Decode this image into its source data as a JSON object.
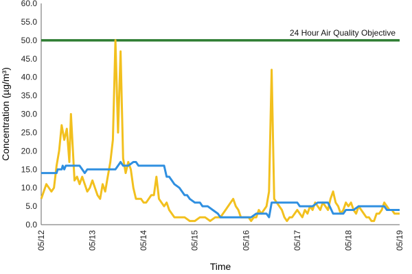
{
  "chart_data": {
    "type": "line",
    "xlabel": "Time",
    "ylabel": "Concentration (µg/m³)",
    "ylim": [
      0,
      60
    ],
    "y_ticks": [
      "0.0",
      "5.0",
      "10.0",
      "15.0",
      "20.0",
      "25.0",
      "30.0",
      "35.0",
      "40.0",
      "45.0",
      "50.0",
      "55.0",
      "60.0"
    ],
    "x_ticks": [
      "05/12",
      "05/13",
      "05/14",
      "05/15",
      "05/16",
      "05/17",
      "05/18",
      "05/19"
    ],
    "x_range_days": [
      0,
      7
    ],
    "grid": "none",
    "legend": "none",
    "objective": {
      "label": "24 Hour Air Quality Objective",
      "value": 50,
      "color": "#2e7d32"
    },
    "series": [
      {
        "color": "#f2c01e",
        "points": [
          [
            0.0,
            7
          ],
          [
            0.05,
            9
          ],
          [
            0.1,
            11
          ],
          [
            0.15,
            10
          ],
          [
            0.2,
            9
          ],
          [
            0.25,
            10
          ],
          [
            0.3,
            16
          ],
          [
            0.35,
            20
          ],
          [
            0.4,
            27
          ],
          [
            0.45,
            23
          ],
          [
            0.5,
            26
          ],
          [
            0.55,
            17
          ],
          [
            0.58,
            30
          ],
          [
            0.62,
            20
          ],
          [
            0.65,
            12
          ],
          [
            0.7,
            13
          ],
          [
            0.75,
            11
          ],
          [
            0.8,
            13
          ],
          [
            0.85,
            11
          ],
          [
            0.9,
            9
          ],
          [
            0.95,
            10
          ],
          [
            1.0,
            12
          ],
          [
            1.05,
            10
          ],
          [
            1.1,
            8
          ],
          [
            1.15,
            7
          ],
          [
            1.2,
            11
          ],
          [
            1.25,
            9
          ],
          [
            1.3,
            13
          ],
          [
            1.35,
            17
          ],
          [
            1.4,
            23
          ],
          [
            1.45,
            50
          ],
          [
            1.5,
            25
          ],
          [
            1.55,
            47
          ],
          [
            1.6,
            18
          ],
          [
            1.65,
            14
          ],
          [
            1.7,
            17
          ],
          [
            1.75,
            15
          ],
          [
            1.8,
            10
          ],
          [
            1.85,
            7
          ],
          [
            1.9,
            7
          ],
          [
            1.95,
            7
          ],
          [
            2.0,
            6
          ],
          [
            2.05,
            6
          ],
          [
            2.1,
            7
          ],
          [
            2.15,
            8
          ],
          [
            2.2,
            8
          ],
          [
            2.25,
            13
          ],
          [
            2.3,
            7
          ],
          [
            2.35,
            6
          ],
          [
            2.4,
            5
          ],
          [
            2.45,
            6
          ],
          [
            2.5,
            4
          ],
          [
            2.55,
            3
          ],
          [
            2.6,
            2
          ],
          [
            2.7,
            2
          ],
          [
            2.8,
            2
          ],
          [
            2.9,
            1
          ],
          [
            3.0,
            1
          ],
          [
            3.1,
            2
          ],
          [
            3.2,
            2
          ],
          [
            3.3,
            1
          ],
          [
            3.4,
            2
          ],
          [
            3.5,
            2
          ],
          [
            3.6,
            4
          ],
          [
            3.7,
            6
          ],
          [
            3.75,
            7
          ],
          [
            3.8,
            5
          ],
          [
            3.85,
            4
          ],
          [
            3.9,
            2
          ],
          [
            3.95,
            2
          ],
          [
            4.0,
            2
          ],
          [
            4.05,
            2
          ],
          [
            4.1,
            1
          ],
          [
            4.15,
            2
          ],
          [
            4.2,
            2
          ],
          [
            4.25,
            4
          ],
          [
            4.3,
            3
          ],
          [
            4.35,
            4
          ],
          [
            4.4,
            5
          ],
          [
            4.45,
            9
          ],
          [
            4.5,
            42
          ],
          [
            4.55,
            7
          ],
          [
            4.6,
            6
          ],
          [
            4.65,
            5
          ],
          [
            4.7,
            4
          ],
          [
            4.75,
            2
          ],
          [
            4.8,
            1
          ],
          [
            4.85,
            2
          ],
          [
            4.9,
            2
          ],
          [
            4.95,
            3
          ],
          [
            5.0,
            4
          ],
          [
            5.05,
            3
          ],
          [
            5.1,
            2
          ],
          [
            5.15,
            4
          ],
          [
            5.2,
            3
          ],
          [
            5.25,
            5
          ],
          [
            5.3,
            4
          ],
          [
            5.35,
            6
          ],
          [
            5.4,
            5
          ],
          [
            5.45,
            4
          ],
          [
            5.5,
            6
          ],
          [
            5.55,
            5
          ],
          [
            5.6,
            4
          ],
          [
            5.65,
            7
          ],
          [
            5.7,
            9
          ],
          [
            5.75,
            6
          ],
          [
            5.8,
            5
          ],
          [
            5.85,
            3
          ],
          [
            5.9,
            4
          ],
          [
            5.95,
            6
          ],
          [
            6.0,
            5
          ],
          [
            6.05,
            6
          ],
          [
            6.1,
            4
          ],
          [
            6.15,
            3
          ],
          [
            6.2,
            5
          ],
          [
            6.25,
            4
          ],
          [
            6.3,
            3
          ],
          [
            6.35,
            2
          ],
          [
            6.4,
            2
          ],
          [
            6.45,
            1
          ],
          [
            6.5,
            1
          ],
          [
            6.55,
            3
          ],
          [
            6.6,
            3
          ],
          [
            6.65,
            4
          ],
          [
            6.7,
            6
          ],
          [
            6.75,
            5
          ],
          [
            6.8,
            4
          ],
          [
            6.85,
            4
          ],
          [
            6.9,
            3
          ],
          [
            7.0,
            3
          ]
        ]
      },
      {
        "color": "#2f8fe0",
        "points": [
          [
            0.0,
            14
          ],
          [
            0.3,
            14
          ],
          [
            0.32,
            15
          ],
          [
            0.4,
            15
          ],
          [
            0.42,
            16
          ],
          [
            0.45,
            15
          ],
          [
            0.48,
            16
          ],
          [
            0.55,
            16
          ],
          [
            0.65,
            16
          ],
          [
            0.75,
            16
          ],
          [
            0.8,
            15
          ],
          [
            0.85,
            14
          ],
          [
            0.9,
            15
          ],
          [
            1.1,
            15
          ],
          [
            1.3,
            15
          ],
          [
            1.45,
            15
          ],
          [
            1.5,
            16
          ],
          [
            1.55,
            17
          ],
          [
            1.6,
            16
          ],
          [
            1.7,
            16
          ],
          [
            1.8,
            17
          ],
          [
            1.85,
            17
          ],
          [
            1.9,
            16
          ],
          [
            2.0,
            16
          ],
          [
            2.1,
            16
          ],
          [
            2.2,
            16
          ],
          [
            2.3,
            16
          ],
          [
            2.4,
            16
          ],
          [
            2.45,
            13
          ],
          [
            2.5,
            13
          ],
          [
            2.55,
            12
          ],
          [
            2.6,
            11
          ],
          [
            2.7,
            10
          ],
          [
            2.75,
            9
          ],
          [
            2.8,
            8
          ],
          [
            2.85,
            8
          ],
          [
            2.9,
            7
          ],
          [
            3.0,
            6
          ],
          [
            3.1,
            6
          ],
          [
            3.15,
            5
          ],
          [
            3.25,
            5
          ],
          [
            3.35,
            4
          ],
          [
            3.45,
            3
          ],
          [
            3.5,
            2
          ],
          [
            3.6,
            2
          ],
          [
            3.8,
            2
          ],
          [
            4.0,
            2
          ],
          [
            4.1,
            2
          ],
          [
            4.2,
            3
          ],
          [
            4.3,
            3
          ],
          [
            4.4,
            3
          ],
          [
            4.45,
            2
          ],
          [
            4.5,
            6
          ],
          [
            4.6,
            6
          ],
          [
            4.8,
            6
          ],
          [
            5.0,
            6
          ],
          [
            5.05,
            5
          ],
          [
            5.2,
            5
          ],
          [
            5.3,
            5
          ],
          [
            5.4,
            6
          ],
          [
            5.5,
            6
          ],
          [
            5.6,
            6
          ],
          [
            5.7,
            3
          ],
          [
            5.8,
            3
          ],
          [
            5.9,
            3
          ],
          [
            5.95,
            4
          ],
          [
            6.0,
            4
          ],
          [
            6.1,
            4
          ],
          [
            6.2,
            5
          ],
          [
            6.3,
            5
          ],
          [
            6.5,
            5
          ],
          [
            6.6,
            5
          ],
          [
            6.7,
            5
          ],
          [
            6.75,
            4
          ],
          [
            6.8,
            4
          ],
          [
            7.0,
            4
          ]
        ]
      }
    ]
  }
}
